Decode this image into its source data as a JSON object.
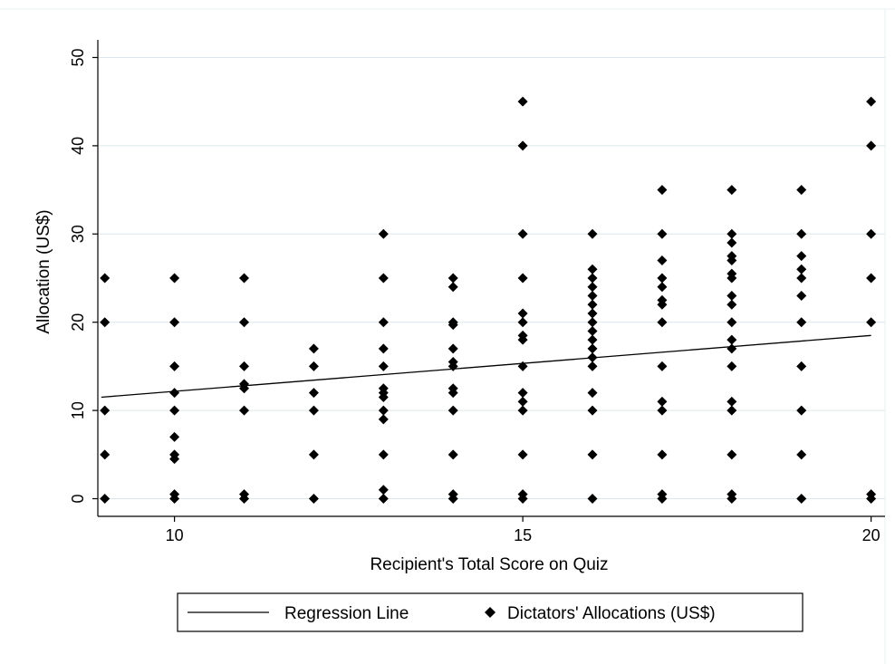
{
  "chart_data": {
    "type": "scatter",
    "title": "",
    "xlabel": "Recipient's Total Score on Quiz",
    "ylabel": "Allocation (US$)",
    "xlim": [
      8.9,
      20.2
    ],
    "ylim": [
      -2,
      52
    ],
    "xticks": [
      10,
      15,
      20
    ],
    "yticks": [
      0,
      10,
      20,
      30,
      40,
      50
    ],
    "grid": true,
    "legend_position": "bottom",
    "colors": {
      "points": "#000000",
      "line": "#000000",
      "grid": "#dbe7ea",
      "frame": "#eaf2f3"
    },
    "series": [
      {
        "name": "Regression Line",
        "kind": "line",
        "points": [
          [
            8.95,
            11.5
          ],
          [
            20.0,
            18.5
          ]
        ]
      },
      {
        "name": "Dictators' Allocations (US$)",
        "kind": "scatter",
        "marker": "diamond",
        "points": [
          [
            9,
            25
          ],
          [
            9,
            20
          ],
          [
            9,
            10
          ],
          [
            9,
            5
          ],
          [
            9,
            0
          ],
          [
            10,
            25
          ],
          [
            10,
            20
          ],
          [
            10,
            15
          ],
          [
            10,
            12
          ],
          [
            10,
            10
          ],
          [
            10,
            7
          ],
          [
            10,
            5
          ],
          [
            10,
            4.5
          ],
          [
            10,
            0.5
          ],
          [
            10,
            0
          ],
          [
            11,
            25
          ],
          [
            11,
            20
          ],
          [
            11,
            15
          ],
          [
            11,
            13
          ],
          [
            11,
            12.5
          ],
          [
            11,
            10
          ],
          [
            11,
            0.5
          ],
          [
            11,
            0
          ],
          [
            12,
            17
          ],
          [
            12,
            15
          ],
          [
            12,
            12
          ],
          [
            12,
            10
          ],
          [
            12,
            5
          ],
          [
            12,
            0
          ],
          [
            13,
            30
          ],
          [
            13,
            25
          ],
          [
            13,
            20
          ],
          [
            13,
            17
          ],
          [
            13,
            15
          ],
          [
            13,
            12.5
          ],
          [
            13,
            12
          ],
          [
            13,
            11.5
          ],
          [
            13,
            10
          ],
          [
            13,
            9
          ],
          [
            13,
            5
          ],
          [
            13,
            1
          ],
          [
            13,
            0
          ],
          [
            14,
            25
          ],
          [
            14,
            24
          ],
          [
            14,
            20
          ],
          [
            14,
            19.7
          ],
          [
            14,
            17
          ],
          [
            14,
            15.5
          ],
          [
            14,
            15
          ],
          [
            14,
            12.5
          ],
          [
            14,
            12
          ],
          [
            14,
            10
          ],
          [
            14,
            5
          ],
          [
            14,
            0.5
          ],
          [
            14,
            0
          ],
          [
            15,
            45
          ],
          [
            15,
            40
          ],
          [
            15,
            30
          ],
          [
            15,
            25
          ],
          [
            15,
            21
          ],
          [
            15,
            20
          ],
          [
            15,
            18.5
          ],
          [
            15,
            18
          ],
          [
            15,
            15
          ],
          [
            15,
            12
          ],
          [
            15,
            11
          ],
          [
            15,
            10
          ],
          [
            15,
            5
          ],
          [
            15,
            0.5
          ],
          [
            15,
            0
          ],
          [
            16,
            30
          ],
          [
            16,
            26
          ],
          [
            16,
            25
          ],
          [
            16,
            24
          ],
          [
            16,
            23
          ],
          [
            16,
            22
          ],
          [
            16,
            21
          ],
          [
            16,
            20
          ],
          [
            16,
            19
          ],
          [
            16,
            18
          ],
          [
            16,
            17
          ],
          [
            16,
            16
          ],
          [
            16,
            15
          ],
          [
            16,
            12
          ],
          [
            16,
            10
          ],
          [
            16,
            5
          ],
          [
            16,
            0
          ],
          [
            17,
            35
          ],
          [
            17,
            30
          ],
          [
            17,
            27
          ],
          [
            17,
            25
          ],
          [
            17,
            24
          ],
          [
            17,
            22.5
          ],
          [
            17,
            22
          ],
          [
            17,
            20
          ],
          [
            17,
            15
          ],
          [
            17,
            11
          ],
          [
            17,
            10
          ],
          [
            17,
            5
          ],
          [
            17,
            0.5
          ],
          [
            17,
            0
          ],
          [
            18,
            35
          ],
          [
            18,
            30
          ],
          [
            18,
            29
          ],
          [
            18,
            27.5
          ],
          [
            18,
            27
          ],
          [
            18,
            25.5
          ],
          [
            18,
            25
          ],
          [
            18,
            23
          ],
          [
            18,
            22
          ],
          [
            18,
            20
          ],
          [
            18,
            18
          ],
          [
            18,
            17
          ],
          [
            18,
            15
          ],
          [
            18,
            11
          ],
          [
            18,
            10
          ],
          [
            18,
            5
          ],
          [
            18,
            0.5
          ],
          [
            18,
            0
          ],
          [
            19,
            35
          ],
          [
            19,
            30
          ],
          [
            19,
            27.5
          ],
          [
            19,
            26
          ],
          [
            19,
            25
          ],
          [
            19,
            23
          ],
          [
            19,
            20
          ],
          [
            19,
            15
          ],
          [
            19,
            10
          ],
          [
            19,
            5
          ],
          [
            19,
            0
          ],
          [
            20,
            45
          ],
          [
            20,
            40
          ],
          [
            20,
            30
          ],
          [
            20,
            25
          ],
          [
            20,
            20
          ],
          [
            20,
            0.5
          ],
          [
            20,
            0
          ]
        ]
      }
    ]
  }
}
